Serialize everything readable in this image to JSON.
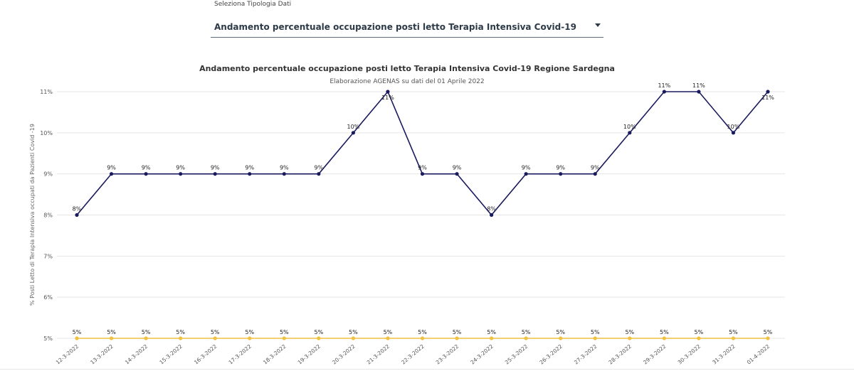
{
  "selector": {
    "label": "Seleziona Tipologia Dati",
    "selected": "Andamento percentuale occupazione posti letto Terapia Intensiva Covid-19"
  },
  "chart_data": {
    "type": "line",
    "title": "Andamento percentuale occupazione posti letto Terapia Intensiva Covid-19 Regione Sardegna",
    "subtitle": "Elaborazione AGENAS su dati del 01 Aprile 2022",
    "ylabel": "% Posti Letto di Terapia Intensiva occupati da Pazienti Covid -19",
    "xlabel": "",
    "ylim": [
      5,
      11
    ],
    "yticks": [
      "5%",
      "6%",
      "7%",
      "8%",
      "9%",
      "10%",
      "11%"
    ],
    "grid": true,
    "categories": [
      "12-3-2022",
      "13-3-2022",
      "14-3-2022",
      "15-3-2022",
      "16-3-2022",
      "17-3-2022",
      "18-3-2022",
      "19-3-2022",
      "20-3-2022",
      "21-3-2022",
      "22-3-2022",
      "23-3-2022",
      "24-3-2022",
      "25-3-2022",
      "26-3-2022",
      "27-3-2022",
      "28-3-2022",
      "29-3-2022",
      "30-3-2022",
      "31-3-2022",
      "01-4-2022"
    ],
    "series": [
      {
        "color": "#1a1a5e",
        "values": [
          8,
          9,
          9,
          9,
          9,
          9,
          9,
          9,
          10,
          11,
          9,
          9,
          8,
          9,
          9,
          9,
          10,
          11,
          11,
          10,
          11
        ],
        "labels": [
          "8%",
          "9%",
          "9%",
          "9%",
          "9%",
          "9%",
          "9%",
          "9%",
          "10%",
          "11%",
          "9%",
          "9%",
          "8%",
          "9%",
          "9%",
          "9%",
          "10%",
          "11%",
          "11%",
          "10%",
          "11%"
        ]
      },
      {
        "color": "#f0c040",
        "values": [
          5,
          5,
          5,
          5,
          5,
          5,
          5,
          5,
          5,
          5,
          5,
          5,
          5,
          5,
          5,
          5,
          5,
          5,
          5,
          5,
          5
        ],
        "labels": [
          "5%",
          "5%",
          "5%",
          "5%",
          "5%",
          "5%",
          "5%",
          "5%",
          "5%",
          "5%",
          "5%",
          "5%",
          "5%",
          "5%",
          "5%",
          "5%",
          "5%",
          "5%",
          "5%",
          "5%",
          "5%"
        ]
      }
    ]
  }
}
